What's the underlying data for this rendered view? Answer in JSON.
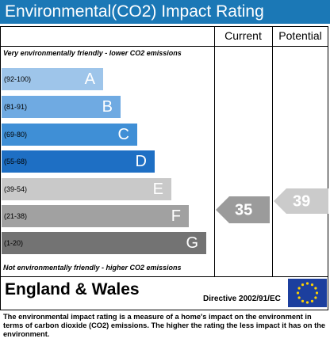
{
  "header": {
    "title": "Environmental(CO2) Impact Rating"
  },
  "columns": [
    "Current",
    "Potential"
  ],
  "top_note": "Very environmentally friendly - lower CO2 emissions",
  "bands": [
    {
      "range": "(92-100)",
      "letter": "A",
      "color": "#9ec5ea"
    },
    {
      "range": "(81-91)",
      "letter": "B",
      "color": "#6faae2"
    },
    {
      "range": "(69-80)",
      "letter": "C",
      "color": "#3f8fd6"
    },
    {
      "range": "(55-68)",
      "letter": "D",
      "color": "#1e6fc4"
    },
    {
      "range": "(39-54)",
      "letter": "E",
      "color": "#c9c9c9"
    },
    {
      "range": "(21-38)",
      "letter": "F",
      "color": "#a1a1a1"
    },
    {
      "range": "(1-20)",
      "letter": "G",
      "color": "#737373"
    }
  ],
  "bottom_note": "Not environmentally friendly - higher CO2 emissions",
  "current": {
    "value": 35,
    "color": "#9b9b9b"
  },
  "potential": {
    "value": 39,
    "color": "#cbcbcb"
  },
  "footer": {
    "region": "England & Wales",
    "directive": "Directive 2002/91/EC"
  },
  "description": "The environmental impact rating is a measure of a home's impact on the environment in terms of carbon dioxide (CO2) emissions. The higher the rating the less impact it has on the environment."
}
